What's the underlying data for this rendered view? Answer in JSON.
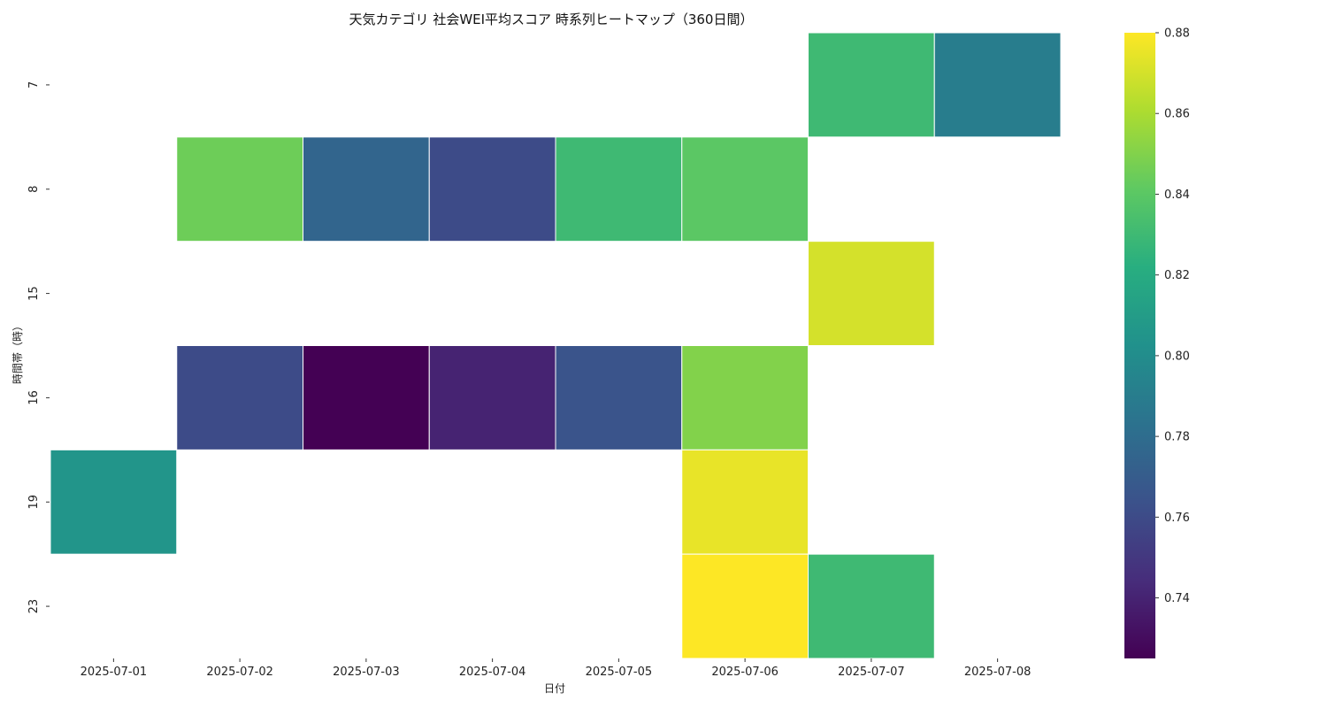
{
  "chart_data": {
    "type": "heatmap",
    "title": "天気カテゴリ 社会WEI平均スコア 時系列ヒートマップ（360日間）",
    "xlabel": "日付",
    "ylabel": "時間帯（時）",
    "x_categories": [
      "2025-07-01",
      "2025-07-02",
      "2025-07-03",
      "2025-07-04",
      "2025-07-05",
      "2025-07-06",
      "2025-07-07",
      "2025-07-08"
    ],
    "y_categories": [
      "7",
      "8",
      "15",
      "16",
      "19",
      "23"
    ],
    "values": [
      [
        null,
        null,
        null,
        null,
        null,
        null,
        0.83,
        0.79
      ],
      [
        null,
        0.845,
        0.775,
        0.76,
        0.83,
        0.84,
        null,
        null
      ],
      [
        null,
        null,
        null,
        null,
        null,
        null,
        0.87,
        null
      ],
      [
        null,
        0.76,
        0.725,
        0.74,
        0.765,
        0.85,
        null,
        null
      ],
      [
        0.805,
        null,
        null,
        null,
        null,
        0.875,
        null,
        null
      ],
      [
        null,
        null,
        null,
        null,
        null,
        0.88,
        0.83,
        null
      ]
    ],
    "colormap": "viridis",
    "vmin": 0.725,
    "vmax": 0.88,
    "colorbar_ticks": [
      0.74,
      0.76,
      0.78,
      0.8,
      0.82,
      0.84,
      0.86,
      0.88
    ],
    "colorbar_tick_labels": [
      "0.74",
      "0.76",
      "0.78",
      "0.80",
      "0.82",
      "0.84",
      "0.86",
      "0.88"
    ],
    "missing_color": "#ffffff",
    "cell_border_color": "#ffffff"
  }
}
